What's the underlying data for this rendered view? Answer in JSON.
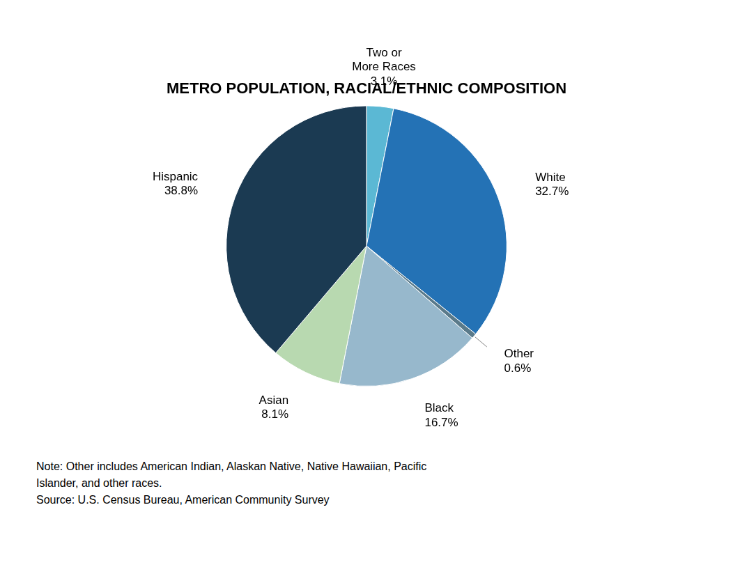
{
  "chart_data": {
    "type": "pie",
    "title": "METRO POPULATION, RACIAL/ETHNIC COMPOSITION",
    "categories": [
      "Two or\nMore Races\n3.1%",
      "White\n32.7%",
      "Other\n0.6%",
      "Black\n16.7%",
      "Asian\n8.1%",
      "Hispanic\n38.8%"
    ],
    "values": [
      3.1,
      32.7,
      0.6,
      16.7,
      8.1,
      38.8
    ],
    "colors": [
      "#5BB8D4",
      "#2472B5",
      "#5A7A8A",
      "#97B8CC",
      "#B8D9B0",
      "#1B3A52"
    ],
    "annotations": [
      "Note: Other includes American Indian, Alaskan Native, Native Hawaiian, Pacific",
      "Islander, and other races.",
      "Source: U.S. Census Bureau, American Community Survey"
    ]
  }
}
